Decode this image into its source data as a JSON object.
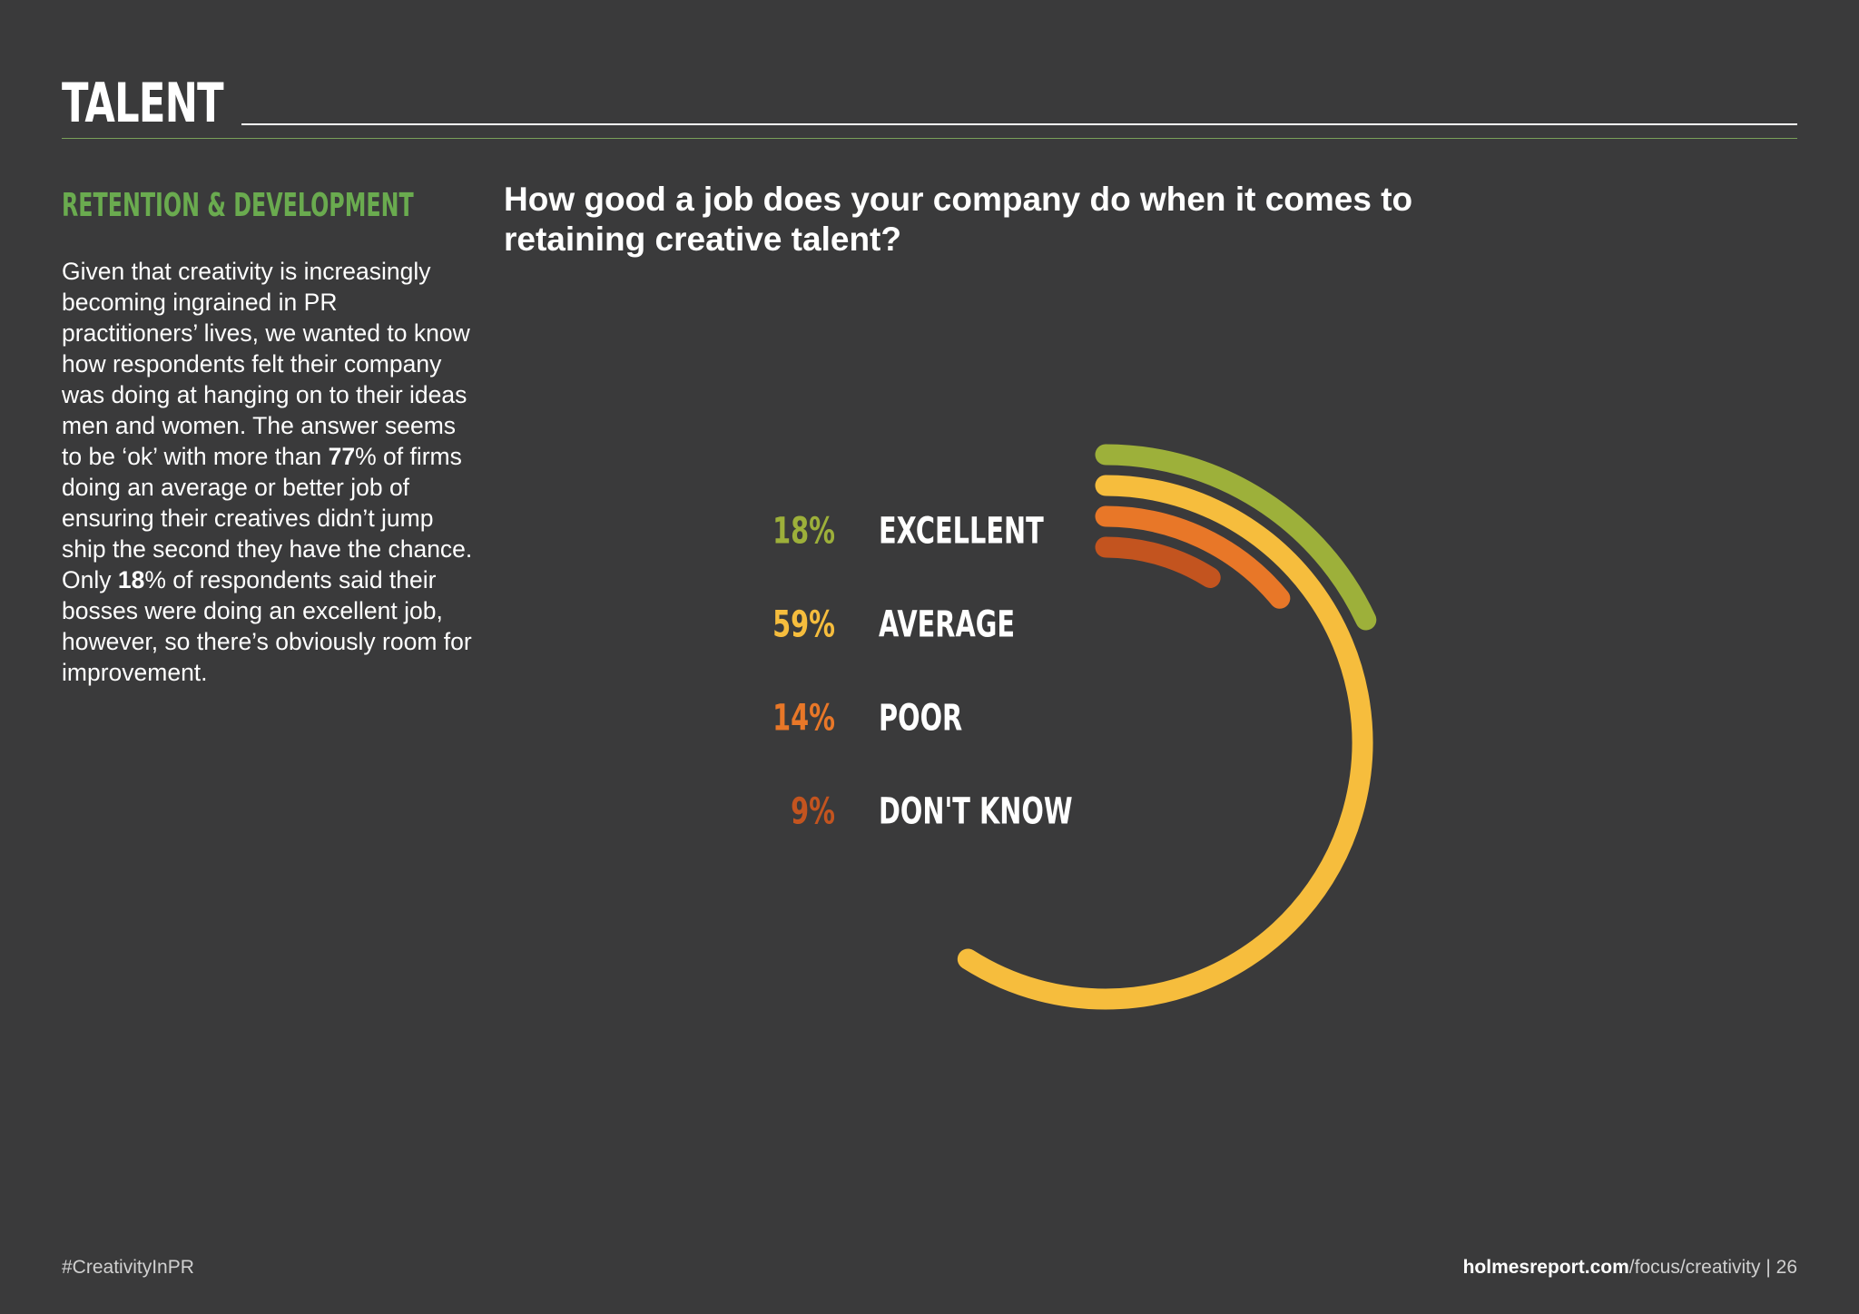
{
  "header": {
    "section_title": "TALENT"
  },
  "sidebar": {
    "subhead": "RETENTION & DEVELOPMENT",
    "paragraph": {
      "part1": "Given that creativity is increasingly becoming ingrained in PR practitioners’ lives, we wanted to know how respondents felt their company was doing at hanging on to their ideas men and women. The answer seems to be ‘ok’ with more than ",
      "bold1": "77",
      "part2": "% of firms doing an average or better job of ensuring their creatives didn’t jump ship the second they have the chance. Only ",
      "bold2": "18",
      "part3": "% of respondents said their bosses were doing an excellent job, however, so there’s obviously room for improvement."
    }
  },
  "chart_data": {
    "type": "radial-bar",
    "title": "How good a job does your company do when it comes to retaining creative talent?",
    "unit": "%",
    "categories": [
      "EXCELLENT",
      "AVERAGE",
      "POOR",
      "DON'T KNOW"
    ],
    "values": [
      18,
      59,
      14,
      9
    ],
    "value_labels": [
      "18%",
      "59%",
      "14%",
      "9%"
    ],
    "colors": [
      "#9db03a",
      "#f6bd3d",
      "#e87728",
      "#c3541f"
    ],
    "legend_position": "left",
    "grid": false
  },
  "footer": {
    "hashtag": "#CreativityInPR",
    "domain": "holmesreport.com",
    "path": "/focus/creativity",
    "separator": " | ",
    "page_number": "26"
  }
}
